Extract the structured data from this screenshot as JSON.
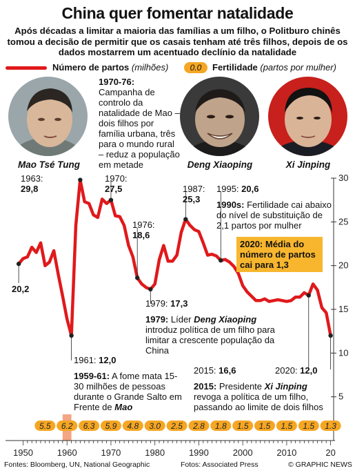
{
  "title": "China quer fomentar natalidade",
  "subtitle": "Após décadas a limitar a maioria das famílias a um filho, o Politburo chinês tomou a decisão de permitir que os casais tenham até três filhos, depois de os dados mostarrem um acentuado declínio da natalidade",
  "legend": {
    "births_label": "Número de partos",
    "births_unit": "(milhões)",
    "fertility_pill": "0.0",
    "fertility_label": "Fertilidade",
    "fertility_unit": "(partos por mulher)"
  },
  "portraits": [
    {
      "name": "Mao Tsé Tung"
    },
    {
      "name": "Deng Xiaoping"
    },
    {
      "name": "Xi Jinping"
    }
  ],
  "annotations": {
    "a1970_76_head": "1970-76:",
    "a1970_76_text": "Campanha de controlo da natalidade de Mao – dois filhos por família urbana, três para o mundo rural – reduz a população em metade",
    "a1963_year": "1963:",
    "a1963_value": "29,8",
    "a1970_year": "1970:",
    "a1970_value": "27,5",
    "a1976_year": "1976:",
    "a1976_value": "18,6",
    "a1987_year": "1987:",
    "a1987_value": "25,3",
    "a1995_year": "1995:",
    "a1995_value": "20,6",
    "a1990s_head": "1990s:",
    "a1990s_text": "Fertilidade cai abaixo do nível de substituição de 2,1 partos por mulher",
    "callout_2020": "2020: Média do número de partos cai para 1,3",
    "a1950s_value": "20,2",
    "a1979_year": "1979:",
    "a1979_value": "17,3",
    "a1979_head": "1979:",
    "a1979_text_pre": "Líder",
    "a1979_name": "Deng Xiaoping",
    "a1979_text_post": "introduz política de um filho para limitar a crescente população da China",
    "a1961_year": "1961:",
    "a1961_value": "12,0",
    "a1959_head": "1959-61:",
    "a1959_text_pre": "A fome mata 15-30 milhões de pessoas durante o Grande Salto em Frente de",
    "a1959_name": "Mao",
    "a2015_year": "2015:",
    "a2015_value": "16,6",
    "a2020_year": "2020:",
    "a2020_value": "12,0",
    "a2015_head": "2015:",
    "a2015_text_pre": "Presidente",
    "a2015_name": "Xi Jinping",
    "a2015_text_post": "revoga a política de um filho, passando ao limite de dois filhos"
  },
  "colors": {
    "births_line": "#e0191b",
    "fertility_pill": "#f5a623",
    "callout": "#f8b62e",
    "famine_band": "#f4a582"
  },
  "footer": {
    "sources": "Fontes: Bloomberg, UN, National Geographic",
    "photos": "Fotos: Associated Press",
    "credit": "© GRAPHIC NEWS"
  },
  "chart_data": {
    "type": "line",
    "title": "",
    "xlabel": "",
    "ylabel": "",
    "xlim": [
      1946,
      2021
    ],
    "ylim": [
      0,
      30
    ],
    "x_ticks": [
      "1950",
      "1960",
      "1970",
      "1980",
      "1990",
      "2000",
      "2010",
      "20"
    ],
    "y_ticks": [
      "5",
      "10",
      "15",
      "20",
      "25",
      "30"
    ],
    "series": [
      {
        "name": "Número de partos",
        "x": [
          1949,
          1950,
          1951,
          1952,
          1953,
          1954,
          1955,
          1956,
          1957,
          1958,
          1959,
          1960,
          1961,
          1962,
          1963,
          1964,
          1965,
          1966,
          1967,
          1968,
          1969,
          1970,
          1971,
          1972,
          1973,
          1974,
          1975,
          1976,
          1977,
          1978,
          1979,
          1980,
          1981,
          1982,
          1983,
          1984,
          1985,
          1986,
          1987,
          1988,
          1989,
          1990,
          1991,
          1992,
          1993,
          1994,
          1995,
          1996,
          1997,
          1998,
          1999,
          2000,
          2001,
          2002,
          2003,
          2004,
          2005,
          2006,
          2007,
          2008,
          2009,
          2010,
          2011,
          2012,
          2013,
          2014,
          2015,
          2016,
          2017,
          2018,
          2019,
          2020
        ],
        "values": [
          20.2,
          20.8,
          21.0,
          22.1,
          21.5,
          22.6,
          20.0,
          20.4,
          21.7,
          19.0,
          16.5,
          13.9,
          12.0,
          24.6,
          29.8,
          27.3,
          27.1,
          25.8,
          25.5,
          27.6,
          27.1,
          27.5,
          25.7,
          25.6,
          24.6,
          22.3,
          21.0,
          18.6,
          17.9,
          17.5,
          17.3,
          17.9,
          20.7,
          22.3,
          20.5,
          20.5,
          21.2,
          23.8,
          25.3,
          24.6,
          24.1,
          23.9,
          22.6,
          21.2,
          21.3,
          21.1,
          20.6,
          20.7,
          20.4,
          19.9,
          19.1,
          17.7,
          17.0,
          16.5,
          16.0,
          16.0,
          16.2,
          15.9,
          16.0,
          16.1,
          16.0,
          15.9,
          16.0,
          16.4,
          16.4,
          16.9,
          16.6,
          17.9,
          17.2,
          15.2,
          14.6,
          12.0
        ]
      },
      {
        "name": "Fertilidade",
        "x": [
          1955,
          1960,
          1965,
          1970,
          1975,
          1980,
          1985,
          1990,
          1995,
          2000,
          2005,
          2010,
          2015,
          2020
        ],
        "values": [
          5.5,
          6.2,
          6.3,
          5.9,
          4.8,
          3.0,
          2.5,
          2.8,
          1.8,
          1.5,
          1.5,
          1.5,
          1.5,
          1.3
        ],
        "labels": [
          "5.5",
          "6.2",
          "6.3",
          "5.9",
          "4.8",
          "3.0",
          "2.5",
          "2.8",
          "1.8",
          "1.5",
          "1.5",
          "1.5",
          "1.5",
          "1.3"
        ]
      }
    ],
    "shaded_period": [
      1959,
      1961
    ],
    "markers": [
      1949,
      1961,
      1963,
      1970,
      1976,
      1979,
      1987,
      1995,
      2015,
      2020
    ]
  }
}
